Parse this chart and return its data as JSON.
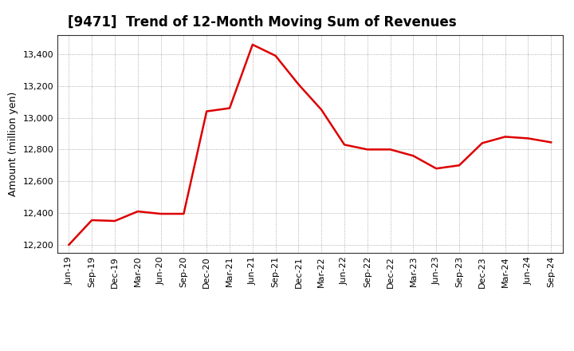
{
  "title": "[9471]  Trend of 12-Month Moving Sum of Revenues",
  "ylabel": "Amount (million yen)",
  "line_color": "#dd0000",
  "background_color": "#ffffff",
  "grid_color": "#999999",
  "xlabels": [
    "Jun-19",
    "Sep-19",
    "Dec-19",
    "Mar-20",
    "Jun-20",
    "Sep-20",
    "Dec-20",
    "Mar-21",
    "Jun-21",
    "Sep-21",
    "Dec-21",
    "Mar-22",
    "Jun-22",
    "Sep-22",
    "Dec-22",
    "Mar-23",
    "Jun-23",
    "Sep-23",
    "Dec-23",
    "Mar-24",
    "Jun-24",
    "Sep-24"
  ],
  "values": [
    12200,
    12355,
    12350,
    12410,
    12395,
    12395,
    13040,
    13060,
    13460,
    13390,
    13210,
    13050,
    12830,
    12800,
    12800,
    12760,
    12680,
    12700,
    12840,
    12880,
    12870,
    12845
  ],
  "ylim": [
    12150,
    13520
  ],
  "yticks": [
    12200,
    12400,
    12600,
    12800,
    13000,
    13200,
    13400
  ],
  "title_fontsize": 12,
  "ylabel_fontsize": 9,
  "tick_fontsize": 8,
  "line_width": 1.8
}
